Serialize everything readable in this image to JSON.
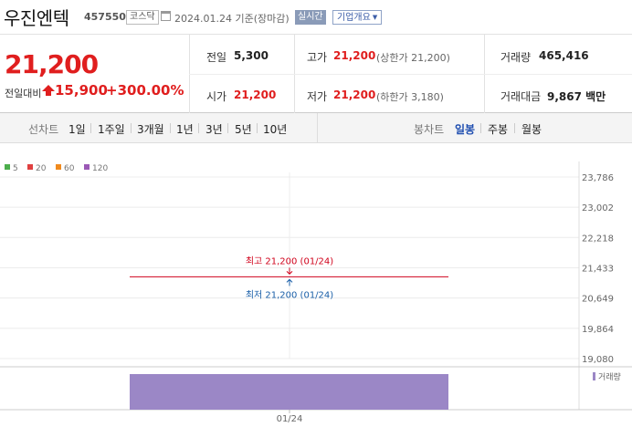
{
  "header": {
    "name": "우진엔텍",
    "code": "457550",
    "market": "코스닥",
    "date_line": "2024.01.24 기준(장마감)",
    "live_label": "실시간",
    "info_label": "기업개요"
  },
  "price": {
    "current": "21,200",
    "change_label": "전일대비",
    "change_value": "15,900",
    "change_pct": "+300.00%"
  },
  "stats": {
    "prev_close": {
      "label": "전일",
      "value": "5,300"
    },
    "high": {
      "label": "고가",
      "value": "21,200",
      "sub": "(상한가 21,200)"
    },
    "volume": {
      "label": "거래량",
      "value": "465,416"
    },
    "open": {
      "label": "시가",
      "value": "21,200"
    },
    "low": {
      "label": "저가",
      "value": "21,200",
      "sub": "(하한가 3,180)"
    },
    "amount": {
      "label": "거래대금",
      "value": "9,867 백만"
    }
  },
  "periods": {
    "line_label": "선차트",
    "line_items": [
      "1일",
      "1주일",
      "3개월",
      "1년",
      "3년",
      "5년",
      "10년"
    ],
    "candle_label": "봉차트",
    "candle_items": [
      "일봉",
      "주봉",
      "월봉"
    ],
    "candle_selected": "일봉"
  },
  "chart_data": {
    "type": "bar",
    "legend": [
      {
        "name": "5",
        "color": "#4cae4c"
      },
      {
        "name": "20",
        "color": "#e04040"
      },
      {
        "name": "60",
        "color": "#f08a1e"
      },
      {
        "name": "120",
        "color": "#9b59b6"
      }
    ],
    "y_ticks": [
      23786,
      23002,
      22218,
      21433,
      20649,
      19864,
      19080
    ],
    "y_tick_labels": [
      "23,786",
      "23,002",
      "22,218",
      "21,433",
      "20,649",
      "19,864",
      "19,080"
    ],
    "ylim": [
      19080,
      23786
    ],
    "x_labels": [
      "01/24"
    ],
    "candles": [
      {
        "date": "01/24",
        "open": 21200,
        "high": 21200,
        "low": 21200,
        "close": 21200
      }
    ],
    "volume": [
      {
        "date": "01/24",
        "value": 465416
      }
    ],
    "volume_label": "거래량",
    "annotations": {
      "high": "최고 21,200 (01/24)",
      "low": "최저 21,200 (01/24)"
    },
    "colors": {
      "up": "#d0021b",
      "down": "#1a5fa8",
      "volume": "#9b87c6"
    }
  }
}
